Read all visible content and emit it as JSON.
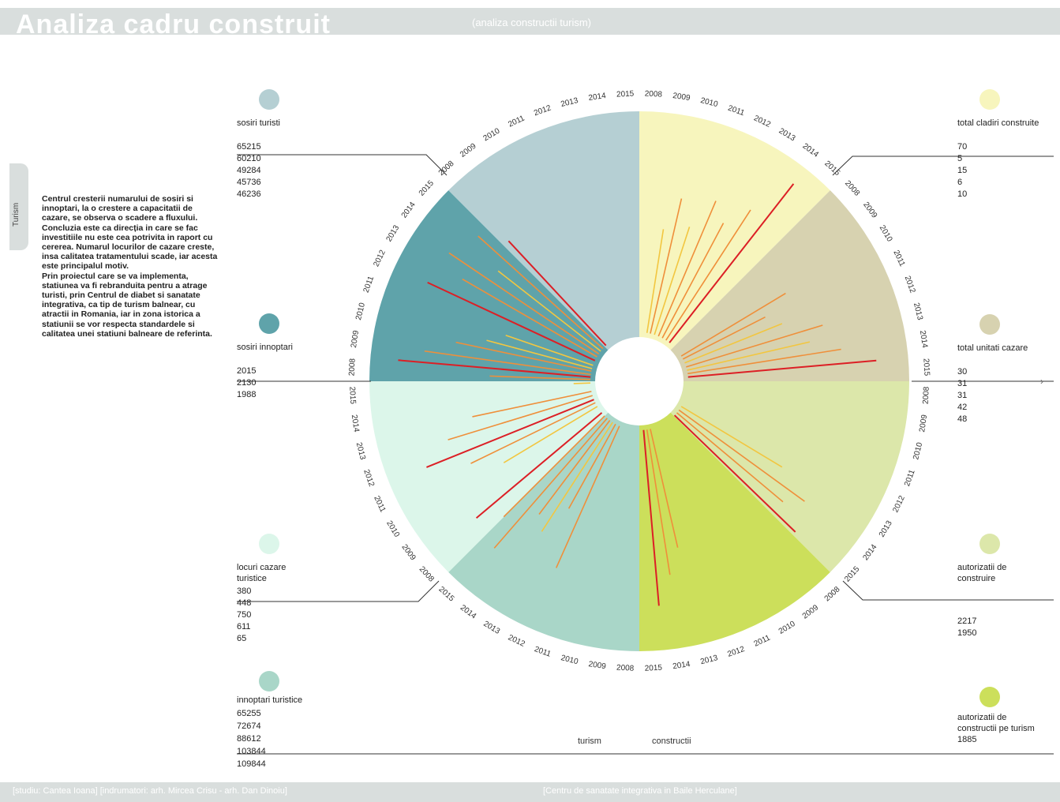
{
  "header": {
    "title": "Analiza cadru construit",
    "subtitle": "(analiza constructii turism)"
  },
  "side_tab": {
    "label": "Turism"
  },
  "intro": {
    "p1": "Centrul cresterii numarului de sosiri si innoptari, la o crestere a capacitatii de cazare, se observa o scadere a fluxului. Concluzia este ca direcția in care se fac investitiile nu este cea potrivita in raport cu cererea. Numarul locurilor de cazare creste, insa calitatea tratamentului scade, iar acesta este principalul motiv.",
    "p2": "Prin proiectul care se va implementa, statiunea va fi rebranduita pentru a atrage turisti, prin Centrul de diabet si sanatate integrativa, ca tip de turism balnear, cu atractii in Romania, iar in zona istorica a statiunii se vor respecta standardele si calitatea unei statiuni balneare de referinta."
  },
  "legend": {
    "sosiri_turisti": {
      "label": "sosiri turisti",
      "values": [
        "65215",
        "60210",
        "49284",
        "45736",
        "46236"
      ]
    },
    "sosiri_innoptari": {
      "label": "sosiri innoptari",
      "values": [
        "2015",
        "2130",
        "1988",
        "",
        ""
      ]
    },
    "locuri_cazare": {
      "label": "locuri cazare turistice",
      "values": [
        "380",
        "448",
        "750",
        "611",
        "65"
      ]
    },
    "innoptari": {
      "label": "innoptari turistice",
      "values": [
        "65255",
        "72674",
        "88612",
        "103844",
        "109844"
      ]
    },
    "total_cladiri": {
      "label": "total cladiri construite",
      "values": [
        "70",
        "5",
        "15",
        "6",
        "10"
      ]
    },
    "total_unitati": {
      "label": "total unitati cazare",
      "values": [
        "30",
        "31",
        "31",
        "42",
        "48"
      ]
    },
    "autorizatii": {
      "label": "autorizatii de construire",
      "values": [
        "2217",
        "1950"
      ]
    },
    "autorizatii_turism": {
      "label": "autorizatii de constructii pe turism",
      "values": [
        "1885"
      ]
    }
  },
  "colors": {
    "sosiri_turisti": "#b5cfd3",
    "sosiri_innoptari": "#5fa3aa",
    "locuri_cazare": "#dcf6ea",
    "innoptari": "#a9d6c8",
    "total_cladiri": "#f7f5bd",
    "total_unitati": "#d7d2b0",
    "autorizatii_light": "#dce7aa",
    "autorizatii": "#ccdf5b",
    "line_red": "#dc1f25",
    "line_orange": "#ef8f3a",
    "line_yellow": "#f2c640"
  },
  "chart_data": {
    "type": "radial",
    "center_labels": [
      "turism",
      "constructii"
    ],
    "sectors": [
      {
        "name": "sosiri turisti",
        "years": [
          "2008",
          "2009",
          "2010",
          "2011",
          "2012",
          "2013",
          "2014",
          "2015"
        ]
      },
      {
        "name": "sosiri innoptari",
        "years": [
          "2008",
          "2009",
          "2010",
          "2011",
          "2012",
          "2013",
          "2014",
          "2015"
        ]
      },
      {
        "name": "locuri cazare turistice",
        "years": [
          "2008",
          "2009",
          "2010",
          "2011",
          "2012",
          "2013",
          "2014",
          "2015"
        ]
      },
      {
        "name": "innoptari turistice",
        "years": [
          "2008",
          "2009",
          "2010",
          "2011",
          "2012",
          "2013",
          "2014",
          "2015"
        ]
      },
      {
        "name": "autorizatii de constructii pe turism",
        "years": [
          "2008",
          "2009",
          "2010",
          "2011",
          "2012",
          "2013",
          "2014",
          "2015"
        ]
      },
      {
        "name": "autorizatii de construire",
        "years": [
          "2008",
          "2009",
          "2010",
          "2011",
          "2012",
          "2013",
          "2014",
          "2015"
        ]
      },
      {
        "name": "total unitati cazare",
        "years": [
          "2008",
          "2009",
          "2010",
          "2011",
          "2012",
          "2013",
          "2014",
          "2015"
        ]
      },
      {
        "name": "total cladiri construite",
        "years": [
          "2008",
          "2009",
          "2010",
          "2011",
          "2012",
          "2013",
          "2014",
          "2015"
        ]
      }
    ],
    "rays": [
      {
        "angle": -155,
        "len": 0.88,
        "c": "red"
      },
      {
        "angle": -150,
        "len": 0.74,
        "c": "orange"
      },
      {
        "angle": -146,
        "len": 0.86,
        "c": "orange"
      },
      {
        "angle": -142,
        "len": 0.62,
        "c": "yellow"
      },
      {
        "angle": -138,
        "len": 0.8,
        "c": "orange"
      },
      {
        "angle": -133,
        "len": 0.68,
        "c": "red"
      },
      {
        "angle": -175,
        "len": 0.92,
        "c": "red"
      },
      {
        "angle": -172,
        "len": 0.8,
        "c": "orange"
      },
      {
        "angle": -168,
        "len": 0.66,
        "c": "orange"
      },
      {
        "angle": -165,
        "len": 0.52,
        "c": "yellow"
      },
      {
        "angle": -161,
        "len": 0.44,
        "c": "yellow"
      },
      {
        "angle": -178,
        "len": 0.48,
        "c": "orange"
      },
      {
        "angle": 168,
        "len": 0.58,
        "c": "orange"
      },
      {
        "angle": 163,
        "len": 0.72,
        "c": "orange"
      },
      {
        "angle": 158,
        "len": 0.86,
        "c": "red"
      },
      {
        "angle": 154,
        "len": 0.66,
        "c": "orange"
      },
      {
        "angle": 149,
        "len": 0.52,
        "c": "yellow"
      },
      {
        "angle": 178,
        "len": 0.08,
        "c": "yellow"
      },
      {
        "angle": 140,
        "len": 0.78,
        "c": "red"
      },
      {
        "angle": 135,
        "len": 0.68,
        "c": "orange"
      },
      {
        "angle": 131,
        "len": 0.82,
        "c": "orange"
      },
      {
        "angle": 127,
        "len": 0.56,
        "c": "orange"
      },
      {
        "angle": 123,
        "len": 0.62,
        "c": "yellow"
      },
      {
        "angle": 119,
        "len": 0.46,
        "c": "orange"
      },
      {
        "angle": 114,
        "len": 0.74,
        "c": "orange"
      },
      {
        "angle": 85,
        "len": 0.84,
        "c": "red"
      },
      {
        "angle": 81,
        "len": 0.7,
        "c": "orange"
      },
      {
        "angle": 77,
        "len": 0.58,
        "c": "orange"
      },
      {
        "angle": 44,
        "len": 0.8,
        "c": "red"
      },
      {
        "angle": 40,
        "len": 0.66,
        "c": "orange"
      },
      {
        "angle": 36,
        "len": 0.74,
        "c": "orange"
      },
      {
        "angle": 31,
        "len": 0.56,
        "c": "yellow"
      },
      {
        "angle": -5,
        "len": 0.9,
        "c": "red"
      },
      {
        "angle": -9,
        "len": 0.74,
        "c": "orange"
      },
      {
        "angle": -13,
        "len": 0.6,
        "c": "yellow"
      },
      {
        "angle": -17,
        "len": 0.68,
        "c": "orange"
      },
      {
        "angle": -22,
        "len": 0.5,
        "c": "yellow"
      },
      {
        "angle": -27,
        "len": 0.44,
        "c": "orange"
      },
      {
        "angle": -31,
        "len": 0.58,
        "c": "orange"
      },
      {
        "angle": -52,
        "len": 0.96,
        "c": "red"
      },
      {
        "angle": -57,
        "len": 0.74,
        "c": "orange"
      },
      {
        "angle": -62,
        "len": 0.62,
        "c": "orange"
      },
      {
        "angle": -67,
        "len": 0.7,
        "c": "orange"
      },
      {
        "angle": -72,
        "len": 0.54,
        "c": "yellow"
      },
      {
        "angle": -77,
        "len": 0.66,
        "c": "orange"
      },
      {
        "angle": -81,
        "len": 0.5,
        "c": "yellow"
      }
    ]
  },
  "footer": {
    "left": "[studiu: Cantea Ioana] [indrumatori: arh. Mircea Crisu - arh. Dan Dinoiu]",
    "right": "[Centru de sanatate integrativa in Baile Herculane]"
  }
}
